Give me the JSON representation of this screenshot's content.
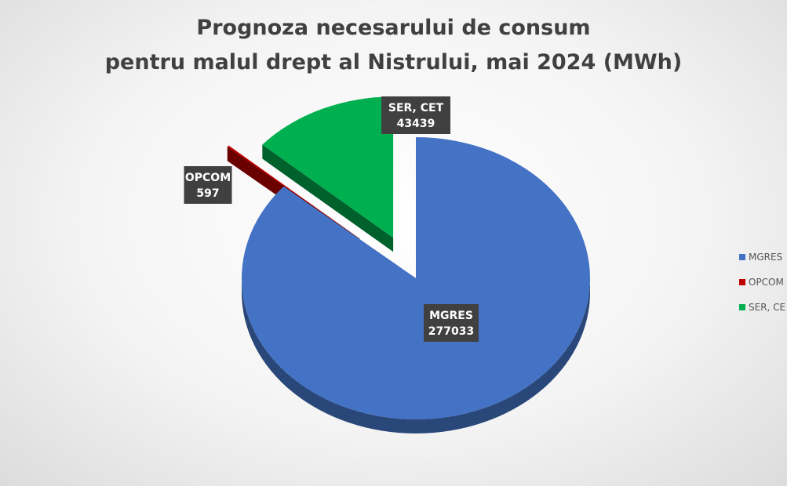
{
  "chart_data": {
    "type": "pie",
    "title_lines": [
      "Prognoza necesarului de consum",
      "pentru malul drept al Nistrului, mai 2024 (MWh)"
    ],
    "categories": [
      "MGRES",
      "OPCOM",
      "SER, CET"
    ],
    "values": [
      277033,
      597,
      43439
    ],
    "colors": [
      "#4472C4",
      "#C00000",
      "#00B050"
    ],
    "legend": {
      "placement": "right",
      "visible_labels": [
        "MGRES",
        "OPCOM",
        "SER, CE"
      ]
    },
    "data_labels": [
      {
        "category": "MGRES",
        "value": "277033"
      },
      {
        "category": "OPCOM",
        "value": "597"
      },
      {
        "category": "SER, CET",
        "value": "43439"
      }
    ],
    "exploded": true,
    "three_d": true
  }
}
